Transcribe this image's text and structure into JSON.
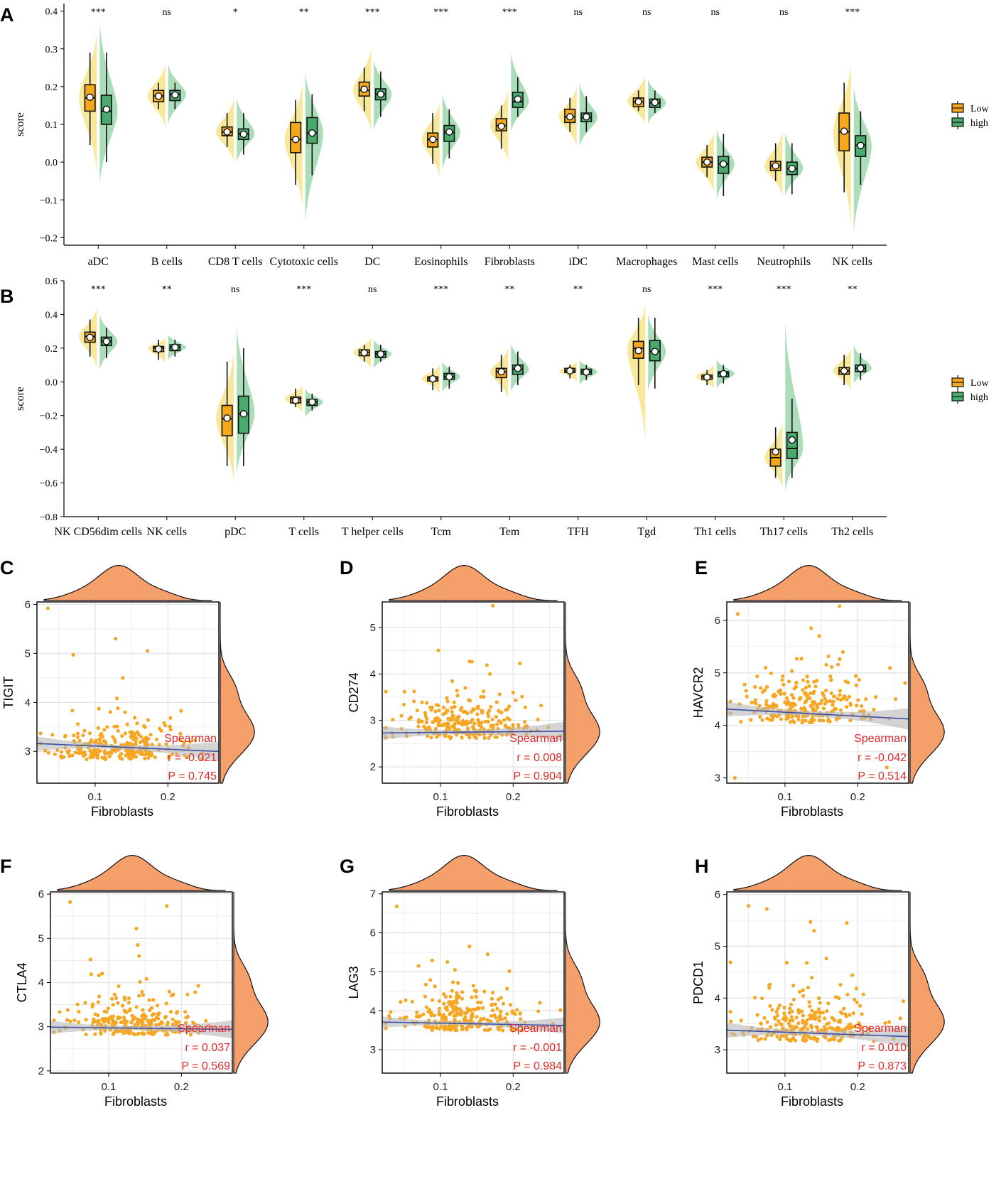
{
  "colors": {
    "low": "#f5a81c",
    "high": "#4aaa6e",
    "low_violin": "#f4e07a",
    "high_violin": "#8fd2a0",
    "density": "#f5a06a",
    "point": "#f5a623",
    "line": "#3b4fa6",
    "ci": "#b8b8b8",
    "grid": "#e6e6e6",
    "stat_text": "#e02a2a"
  },
  "legend": {
    "entries": [
      "Low",
      "high"
    ]
  },
  "chart_data": [
    {
      "type": "split-violin-box",
      "panel": "A",
      "ylabel": "score",
      "ylim": [
        -0.22,
        0.42
      ],
      "yticks": [
        -0.2,
        -0.1,
        0.0,
        0.1,
        0.2,
        0.3,
        0.4
      ],
      "ytick_labels": [
        "−0.2",
        "−0.1",
        "0.0",
        "0.1",
        "0.2",
        "0.3",
        "0.4"
      ],
      "categories": [
        "aDC",
        "B cells",
        "CD8 T cells",
        "Cytotoxic cells",
        "DC",
        "Eosinophils",
        "Fibroblasts",
        "iDC",
        "Macrophages",
        "Mast cells",
        "Neutrophils",
        "NK cells"
      ],
      "significance": [
        "***",
        "ns",
        "*",
        "**",
        "***",
        "***",
        "***",
        "ns",
        "ns",
        "ns",
        "ns",
        "***"
      ],
      "series": [
        {
          "name": "Low",
          "box": [
            [
              0.045,
              0.135,
              0.17,
              0.205,
              0.29
            ],
            [
              0.14,
              0.16,
              0.175,
              0.19,
              0.21
            ],
            [
              0.04,
              0.07,
              0.08,
              0.093,
              0.13
            ],
            [
              -0.06,
              0.025,
              0.06,
              0.105,
              0.165
            ],
            [
              0.135,
              0.175,
              0.19,
              0.212,
              0.25
            ],
            [
              -0.005,
              0.04,
              0.06,
              0.077,
              0.13
            ],
            [
              0.035,
              0.083,
              0.097,
              0.115,
              0.15
            ],
            [
              0.08,
              0.105,
              0.12,
              0.14,
              0.17
            ],
            [
              0.135,
              0.147,
              0.16,
              0.17,
              0.19
            ],
            [
              -0.04,
              -0.013,
              0.0,
              0.013,
              0.045
            ],
            [
              -0.05,
              -0.022,
              -0.01,
              0.002,
              0.05
            ],
            [
              -0.08,
              0.03,
              0.08,
              0.13,
              0.21
            ]
          ],
          "mean": [
            0.172,
            0.175,
            0.08,
            0.06,
            0.193,
            0.06,
            0.095,
            0.12,
            0.16,
            0.0,
            -0.01,
            0.082
          ],
          "violin": [
            [
              -0.03,
              0.34
            ],
            [
              0.09,
              0.26
            ],
            [
              0.0,
              0.17
            ],
            [
              -0.12,
              0.21
            ],
            [
              0.08,
              0.3
            ],
            [
              -0.04,
              0.16
            ],
            [
              0.0,
              0.19
            ],
            [
              0.04,
              0.2
            ],
            [
              0.1,
              0.23
            ],
            [
              -0.08,
              0.08
            ],
            [
              -0.09,
              0.08
            ],
            [
              -0.17,
              0.26
            ]
          ]
        },
        {
          "name": "high",
          "box": [
            [
              0.0,
              0.1,
              0.135,
              0.177,
              0.29
            ],
            [
              0.14,
              0.163,
              0.18,
              0.19,
              0.21
            ],
            [
              0.02,
              0.06,
              0.075,
              0.088,
              0.13
            ],
            [
              -0.035,
              0.05,
              0.077,
              0.118,
              0.18
            ],
            [
              0.12,
              0.165,
              0.18,
              0.194,
              0.24
            ],
            [
              0.01,
              0.055,
              0.078,
              0.097,
              0.14
            ],
            [
              0.12,
              0.145,
              0.16,
              0.185,
              0.225
            ],
            [
              0.08,
              0.107,
              0.118,
              0.13,
              0.175
            ],
            [
              0.13,
              0.145,
              0.157,
              0.167,
              0.19
            ],
            [
              -0.09,
              -0.03,
              -0.005,
              0.015,
              0.075
            ],
            [
              -0.085,
              -0.033,
              -0.017,
              0.0,
              0.05
            ],
            [
              -0.06,
              0.015,
              0.045,
              0.07,
              0.135
            ]
          ],
          "mean": [
            0.14,
            0.178,
            0.074,
            0.077,
            0.18,
            0.08,
            0.167,
            0.12,
            0.158,
            -0.005,
            -0.017,
            0.044
          ],
          "violin": [
            [
              -0.06,
              0.37
            ],
            [
              0.1,
              0.26
            ],
            [
              0.0,
              0.17
            ],
            [
              -0.16,
              0.24
            ],
            [
              0.08,
              0.27
            ],
            [
              -0.02,
              0.18
            ],
            [
              0.08,
              0.29
            ],
            [
              0.04,
              0.21
            ],
            [
              0.1,
              0.22
            ],
            [
              -0.1,
              0.09
            ],
            [
              -0.09,
              0.08
            ],
            [
              -0.19,
              0.2
            ]
          ]
        }
      ]
    },
    {
      "type": "split-violin-box",
      "panel": "B",
      "ylabel": "score",
      "ylim": [
        -0.8,
        0.6
      ],
      "yticks": [
        -0.8,
        -0.6,
        -0.4,
        -0.2,
        0.0,
        0.2,
        0.4,
        0.6
      ],
      "ytick_labels": [
        "−0.8",
        "−0.6",
        "−0.4",
        "−0.2",
        "0.0",
        "0.2",
        "0.4",
        "0.6"
      ],
      "categories": [
        "NK CD56dim cells",
        "NK cells",
        "pDC",
        "T cells",
        "T helper cells",
        "Tcm",
        "Tem",
        "TFH",
        "Tgd",
        "Th1 cells",
        "Th17 cells",
        "Th2 cells"
      ],
      "significance": [
        "***",
        "**",
        "ns",
        "***",
        "ns",
        "***",
        "**",
        "**",
        "ns",
        "***",
        "***",
        "**"
      ],
      "series": [
        {
          "name": "Low",
          "box": [
            [
              0.15,
              0.235,
              0.27,
              0.295,
              0.37
            ],
            [
              0.13,
              0.18,
              0.2,
              0.21,
              0.25
            ],
            [
              -0.5,
              -0.32,
              -0.22,
              -0.14,
              0.12
            ],
            [
              -0.15,
              -0.125,
              -0.1,
              -0.09,
              -0.04
            ],
            [
              0.12,
              0.155,
              0.175,
              0.19,
              0.22
            ],
            [
              -0.05,
              0.005,
              0.02,
              0.03,
              0.08
            ],
            [
              -0.06,
              0.025,
              0.06,
              0.08,
              0.16
            ],
            [
              0.02,
              0.055,
              0.065,
              0.08,
              0.1
            ],
            [
              -0.02,
              0.14,
              0.2,
              0.24,
              0.38
            ],
            [
              -0.02,
              0.015,
              0.03,
              0.04,
              0.07
            ],
            [
              -0.57,
              -0.5,
              -0.45,
              -0.4,
              -0.27
            ],
            [
              -0.02,
              0.045,
              0.065,
              0.085,
              0.16
            ]
          ],
          "mean": [
            0.264,
            0.195,
            -0.215,
            -0.11,
            0.172,
            0.018,
            0.06,
            0.065,
            0.185,
            0.028,
            -0.415,
            0.065
          ],
          "violin": [
            [
              0.08,
              0.44
            ],
            [
              0.11,
              0.26
            ],
            [
              -0.6,
              0.18
            ],
            [
              -0.18,
              -0.02
            ],
            [
              0.08,
              0.26
            ],
            [
              -0.07,
              0.1
            ],
            [
              -0.1,
              0.2
            ],
            [
              0.0,
              0.12
            ],
            [
              -0.35,
              0.46
            ],
            [
              -0.04,
              0.1
            ],
            [
              -0.63,
              -0.24
            ],
            [
              -0.05,
              0.2
            ]
          ]
        },
        {
          "name": "high",
          "box": [
            [
              0.14,
              0.215,
              0.24,
              0.265,
              0.32
            ],
            [
              0.15,
              0.185,
              0.205,
              0.22,
              0.25
            ],
            [
              -0.5,
              -0.305,
              -0.19,
              -0.085,
              0.2
            ],
            [
              -0.17,
              -0.14,
              -0.12,
              -0.105,
              -0.07
            ],
            [
              0.12,
              0.145,
              0.165,
              0.18,
              0.22
            ],
            [
              -0.04,
              0.015,
              0.03,
              0.05,
              0.09
            ],
            [
              -0.02,
              0.045,
              0.075,
              0.1,
              0.18
            ],
            [
              0.01,
              0.045,
              0.06,
              0.075,
              0.1
            ],
            [
              -0.04,
              0.125,
              0.18,
              0.245,
              0.38
            ],
            [
              -0.01,
              0.03,
              0.05,
              0.06,
              0.1
            ],
            [
              -0.57,
              -0.455,
              -0.395,
              -0.3,
              -0.1
            ],
            [
              0.01,
              0.06,
              0.08,
              0.1,
              0.17
            ]
          ],
          "mean": [
            0.24,
            0.205,
            -0.19,
            -0.12,
            0.165,
            0.03,
            0.08,
            0.058,
            0.18,
            0.048,
            -0.345,
            0.08
          ],
          "violin": [
            [
              0.07,
              0.4
            ],
            [
              0.13,
              0.28
            ],
            [
              -0.55,
              0.33
            ],
            [
              -0.21,
              -0.04
            ],
            [
              0.08,
              0.25
            ],
            [
              -0.06,
              0.12
            ],
            [
              -0.06,
              0.23
            ],
            [
              -0.02,
              0.13
            ],
            [
              -0.06,
              0.4
            ],
            [
              -0.04,
              0.13
            ],
            [
              -0.65,
              0.36
            ],
            [
              -0.01,
              0.22
            ]
          ]
        }
      ]
    },
    {
      "type": "scatter",
      "panel": "C",
      "xlabel": "Fibroblasts",
      "ylabel": "TIGIT",
      "xlim": [
        0.02,
        0.27
      ],
      "ylim": [
        2.35,
        6.05
      ],
      "xticks": [
        0.1,
        0.2
      ],
      "yticks": [
        3,
        4,
        5,
        6
      ],
      "fit": {
        "intercept": 3.16,
        "slope": -0.65
      },
      "stat": {
        "method": "Spearman",
        "r": "r = -0.021",
        "p": "P = 0.745"
      },
      "y_center": 2.95,
      "y_spread": 0.33,
      "outliers": [
        [
          0.035,
          5.92
        ],
        [
          0.07,
          4.97
        ],
        [
          0.128,
          5.3
        ],
        [
          0.172,
          5.05
        ],
        [
          0.138,
          4.5
        ],
        [
          0.13,
          4.08
        ]
      ]
    },
    {
      "type": "scatter",
      "panel": "D",
      "xlabel": "Fibroblasts",
      "ylabel": "CD274",
      "xlim": [
        0.02,
        0.27
      ],
      "ylim": [
        1.65,
        5.55
      ],
      "xticks": [
        0.1,
        0.2
      ],
      "yticks": [
        2,
        3,
        4,
        5
      ],
      "fit": {
        "intercept": 2.73,
        "slope": 0.15
      },
      "stat": {
        "method": "Spearman",
        "r": "r = 0.008",
        "p": "P = 0.904"
      },
      "y_center": 2.75,
      "y_spread": 0.38,
      "outliers": [
        [
          0.172,
          5.47
        ],
        [
          0.14,
          4.27
        ],
        [
          0.168,
          4.0
        ],
        [
          0.2,
          3.6
        ]
      ]
    },
    {
      "type": "scatter",
      "panel": "E",
      "xlabel": "Fibroblasts",
      "ylabel": "HAVCR2",
      "xlim": [
        0.02,
        0.27
      ],
      "ylim": [
        2.9,
        6.35
      ],
      "xticks": [
        0.1,
        0.2
      ],
      "yticks": [
        3,
        4,
        5,
        6
      ],
      "fit": {
        "intercept": 4.31,
        "slope": -0.75
      },
      "stat": {
        "method": "Spearman",
        "r": "r = -0.042",
        "p": "P = 0.514"
      },
      "y_center": 4.2,
      "y_spread": 0.42,
      "outliers": [
        [
          0.035,
          6.12
        ],
        [
          0.175,
          6.27
        ],
        [
          0.136,
          5.85
        ],
        [
          0.031,
          3.0
        ],
        [
          0.24,
          3.2
        ]
      ]
    },
    {
      "type": "scatter",
      "panel": "F",
      "xlabel": "Fibroblasts",
      "ylabel": "CTLA4",
      "xlim": [
        0.02,
        0.27
      ],
      "ylim": [
        1.95,
        6.05
      ],
      "xticks": [
        0.1,
        0.2
      ],
      "yticks": [
        2,
        3,
        4,
        5,
        6
      ],
      "fit": {
        "intercept": 2.99,
        "slope": -0.2
      },
      "stat": {
        "method": "Spearman",
        "r": "r = 0.037",
        "p": "P = 0.569"
      },
      "y_center": 2.95,
      "y_spread": 0.38,
      "outliers": [
        [
          0.047,
          5.82
        ],
        [
          0.138,
          5.22
        ],
        [
          0.18,
          5.73
        ],
        [
          0.14,
          4.85
        ],
        [
          0.075,
          4.52
        ],
        [
          0.142,
          4.6
        ]
      ]
    },
    {
      "type": "scatter",
      "panel": "G",
      "xlabel": "Fibroblasts",
      "ylabel": "LAG3",
      "xlim": [
        0.02,
        0.27
      ],
      "ylim": [
        2.4,
        7.05
      ],
      "xticks": [
        0.1,
        0.2
      ],
      "yticks": [
        3,
        4,
        5,
        6,
        7
      ],
      "fit": {
        "intercept": 3.71,
        "slope": -0.35
      },
      "stat": {
        "method": "Spearman",
        "r": "r = -0.001",
        "p": "P = 0.984"
      },
      "y_center": 3.65,
      "y_spread": 0.45,
      "outliers": [
        [
          0.04,
          6.68
        ],
        [
          0.14,
          5.65
        ],
        [
          0.165,
          5.45
        ],
        [
          0.07,
          5.15
        ],
        [
          0.12,
          5.05
        ]
      ]
    },
    {
      "type": "scatter",
      "panel": "H",
      "xlabel": "Fibroblasts",
      "ylabel": "PDCD1",
      "xlim": [
        0.02,
        0.27
      ],
      "ylim": [
        2.55,
        6.05
      ],
      "xticks": [
        0.1,
        0.2
      ],
      "yticks": [
        3,
        4,
        5,
        6
      ],
      "fit": {
        "intercept": 3.38,
        "slope": -0.5
      },
      "stat": {
        "method": "Spearman",
        "r": "r = 0.010",
        "p": "P = 0.873"
      },
      "y_center": 3.3,
      "y_spread": 0.38,
      "outliers": [
        [
          0.05,
          5.78
        ],
        [
          0.075,
          5.72
        ],
        [
          0.135,
          5.47
        ],
        [
          0.14,
          5.3
        ],
        [
          0.185,
          5.45
        ],
        [
          0.13,
          4.68
        ]
      ]
    }
  ]
}
